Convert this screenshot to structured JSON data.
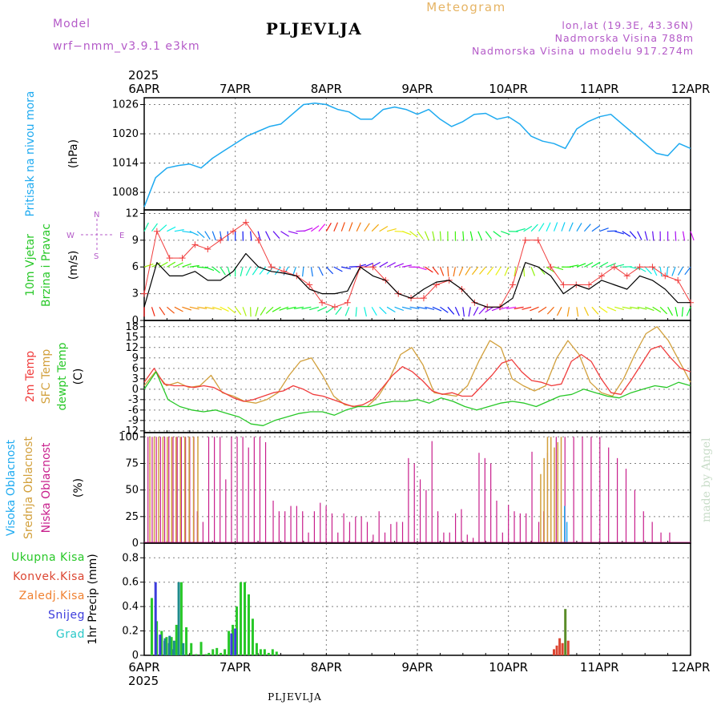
{
  "header": {
    "meteogram_label": "Meteogram",
    "model_label": "Model",
    "model_name": "wrf−nmm_v3.9.1  e3km",
    "station_name": "PLJEVLJA",
    "location": "lon,lat (19.3E, 43.36N)",
    "elevation": "Nadmorska Visina 788m",
    "model_elevation": "Nadmorska Visina u modelu 917.274m",
    "year": "2025",
    "footer_station": "PLJEVLJA",
    "credit": "made by Angel"
  },
  "colors": {
    "pressure": "#1eaaf0",
    "wind_speed": "#000000",
    "wind_gust": "#f03c3c",
    "temp_2m": "#f03c3c",
    "temp_sfc": "#d2a03c",
    "dewpoint": "#28c828",
    "cloud_high": "#1eaaf0",
    "cloud_mid": "#d2a03c",
    "cloud_low": "#c81e8c",
    "precip_total": "#28c828",
    "precip_conv": "#dc4632",
    "precip_frz": "#f08232",
    "precip_snow": "#3c3cdc",
    "precip_hail": "#28c8c8",
    "grid": "#808080"
  },
  "chart_data": [
    {
      "type": "line",
      "panel": "pressure",
      "ylabel": [
        "Pritisak na nivou mora",
        "(hPa)"
      ],
      "yticks": [
        1008,
        1014,
        1020,
        1026
      ],
      "ylim": [
        1004.4,
        1027.4
      ],
      "x_day_ticks": [
        "6APR",
        "7APR",
        "8APR",
        "9APR",
        "10APR",
        "11APR",
        "12APR"
      ],
      "x_hours": [
        0,
        3,
        6,
        9,
        12,
        15,
        18,
        21,
        24,
        27,
        30,
        33,
        36,
        39,
        42,
        45,
        48,
        51,
        54,
        57,
        60,
        63,
        66,
        69,
        72,
        75,
        78,
        81,
        84,
        87,
        90,
        93,
        96,
        99,
        102,
        105,
        108,
        111,
        114,
        117,
        120,
        123,
        126,
        129,
        132,
        135,
        138,
        141,
        144
      ],
      "series": [
        {
          "name": "MSLP",
          "values": [
            1005,
            1011,
            1013,
            1013.5,
            1013.8,
            1013,
            1015,
            1016.5,
            1018,
            1019.5,
            1020.5,
            1021.5,
            1022,
            1024,
            1026,
            1026.3,
            1026,
            1025,
            1024.5,
            1023,
            1023,
            1025,
            1025.5,
            1025,
            1024,
            1025,
            1023,
            1021.5,
            1022.5,
            1024,
            1024.2,
            1023,
            1023.5,
            1022,
            1019.5,
            1018.5,
            1018,
            1017,
            1021,
            1022.5,
            1023.5,
            1024,
            1022,
            1020,
            1018,
            1016,
            1015.5,
            1018,
            1017
          ]
        }
      ]
    },
    {
      "type": "line",
      "panel": "wind",
      "ylabel": [
        "10m Vjetar",
        "Brzina i Pravac",
        "(m/s)"
      ],
      "compass": {
        "n": "N",
        "s": "S",
        "e": "E",
        "w": "W"
      },
      "yticks": [
        0,
        3,
        6,
        9,
        12
      ],
      "ylim": [
        0,
        12.4
      ],
      "barb_levels": [
        1.5,
        6,
        10
      ],
      "series": [
        {
          "name": "Wind speed",
          "values": [
            1.5,
            6.5,
            5,
            5,
            5.5,
            4.5,
            4.5,
            5.5,
            7.5,
            6,
            5.5,
            5.3,
            5,
            3.5,
            3,
            3,
            3.3,
            6,
            5,
            4.5,
            3,
            2.5,
            3.5,
            4.3,
            4.5,
            3.5,
            2,
            1.5,
            1.5,
            2.5,
            6.5,
            6,
            5,
            3,
            4,
            3.5,
            4.5,
            4,
            3.5,
            5,
            4.5,
            3.5,
            2,
            2
          ]
        },
        {
          "name": "Wind gust",
          "values": [
            3,
            10,
            7,
            7,
            8.5,
            8,
            9,
            10,
            11,
            9,
            6,
            5.5,
            5,
            4,
            2,
            1.5,
            2,
            6,
            6,
            4.5,
            3,
            2.5,
            2.5,
            4,
            4.5,
            3.5,
            2,
            1.5,
            1.5,
            4,
            9,
            9,
            6,
            4,
            4,
            4,
            5,
            6,
            5,
            6,
            6,
            5,
            4.5,
            2
          ]
        }
      ],
      "x_hours_ref": "series sampled every 3.35 h across 144 h"
    },
    {
      "type": "line",
      "panel": "temperature",
      "ylabel": [
        "2m Temp",
        "SFC Temp",
        "dewpt Temp",
        "(C)"
      ],
      "yticks": [
        -12,
        -9,
        -6,
        -3,
        0,
        3,
        6,
        9,
        12,
        15,
        18
      ],
      "ylim": [
        -12.5,
        19.8
      ],
      "series": [
        {
          "name": "2m Temp",
          "values": [
            2,
            6,
            1.5,
            1,
            1,
            0.5,
            1,
            0.5,
            -1,
            -2.5,
            -3.5,
            -3,
            -2,
            -1,
            -0.5,
            1,
            0,
            -1.5,
            -2,
            -3,
            -4,
            -5,
            -4.5,
            -3,
            0.5,
            4,
            6.5,
            5,
            2.5,
            -0.5,
            -1.5,
            -1,
            -2,
            -2,
            1,
            4,
            7.5,
            8.5,
            5,
            2.5,
            2,
            1,
            1.5,
            8,
            10,
            8,
            3,
            -1,
            -1.5,
            2.5,
            7,
            11.5,
            12.5,
            9,
            6,
            5
          ]
        },
        {
          "name": "SFC Temp",
          "values": [
            1,
            5,
            1,
            2,
            0.5,
            1,
            4,
            -1,
            -2,
            -3.5,
            -4,
            -3,
            -1,
            4,
            8,
            9,
            4,
            -2,
            -4.5,
            -5,
            -5,
            -2,
            3,
            10,
            12,
            7,
            -1,
            -1.5,
            -2,
            1,
            8,
            14,
            12,
            3,
            1,
            -0.5,
            1,
            9,
            14,
            10,
            2,
            -1,
            -2,
            3,
            10,
            16,
            18,
            14,
            8,
            2
          ]
        },
        {
          "name": "dewpt Temp",
          "values": [
            0,
            5,
            -3,
            -5,
            -6,
            -6.5,
            -6,
            -7,
            -8,
            -10,
            -10.5,
            -9,
            -8,
            -7,
            -6.5,
            -6.5,
            -7.5,
            -6,
            -5,
            -5,
            -4,
            -3.5,
            -3.5,
            -3,
            -4,
            -2.5,
            -3.5,
            -5,
            -6,
            -5,
            -4,
            -3.5,
            -4,
            -5,
            -3.5,
            -2,
            -1.5,
            0,
            -1,
            -2,
            -2.5,
            -1,
            0,
            1,
            0.5,
            2,
            1
          ]
        }
      ]
    },
    {
      "type": "bar",
      "panel": "clouds",
      "ylabel": [
        "Visoka Oblacnost",
        "Srednja Oblacnost",
        "Niska Oblacnost",
        "(%)"
      ],
      "yticks": [
        0,
        25,
        50,
        75,
        100
      ],
      "ylim": [
        0,
        104
      ],
      "series": [
        {
          "name": "Niska Oblacnost",
          "values": [
            100,
            100,
            100,
            100,
            100,
            100,
            100,
            100,
            100,
            100,
            100,
            100,
            30,
            20,
            100,
            100,
            100,
            60,
            100,
            100,
            100,
            90,
            100,
            100,
            95,
            40,
            30,
            30,
            35,
            35,
            30,
            10,
            30,
            38,
            35,
            28,
            10,
            28,
            20,
            25,
            25,
            20,
            8,
            30,
            10,
            18,
            20,
            20,
            80,
            75,
            60,
            50,
            96,
            30,
            10,
            10,
            28,
            32,
            8,
            5,
            85,
            80,
            75,
            40,
            10,
            36,
            30,
            28,
            28,
            86,
            0,
            30,
            20,
            85,
            100,
            100,
            100,
            100,
            100,
            100,
            90,
            80,
            70,
            50,
            30,
            20,
            10,
            10
          ]
        },
        {
          "name": "Srednja Oblacnost",
          "values": [
            100,
            100,
            100,
            100,
            100,
            100,
            100,
            100,
            100,
            100,
            100,
            100,
            65,
            80,
            100,
            100,
            90,
            95,
            100
          ]
        },
        {
          "name": "Visoka Oblacnost",
          "values": [
            0,
            0,
            0,
            0,
            0,
            0,
            0,
            0,
            35,
            20,
            0
          ]
        }
      ]
    },
    {
      "type": "bar",
      "panel": "precipitation",
      "ylabel": [
        "1hr Precip (mm)"
      ],
      "legend": [
        "Ukupna Kisa",
        "Konvek.Kisa",
        "Zaledj.Kisa",
        "Snijeg",
        "Grad"
      ],
      "yticks": [
        0,
        0.2,
        0.4,
        0.6,
        0.8
      ],
      "ylim": [
        0,
        0.92
      ],
      "x_day_ticks": [
        "6APR",
        "7APR",
        "8APR",
        "9APR",
        "10APR",
        "11APR",
        "12APR"
      ],
      "series": [
        {
          "name": "Ukupna Kisa",
          "values": [
            0.47,
            0.28,
            0.2,
            0.15,
            0.15,
            0.25,
            0.6,
            0.23,
            0.1,
            0.01,
            0.11,
            0.01,
            0,
            0.02,
            0.05,
            0.06,
            0.02,
            0.05,
            0.2,
            0.25,
            0.4,
            0.6,
            0.6,
            0.5,
            0.3,
            0.1,
            0.05,
            0.05,
            0.02,
            0.05,
            0.03
          ]
        },
        {
          "name": "Konvek.Kisa",
          "values": [
            0.05,
            0.08,
            0.14,
            0.1,
            0.38,
            0.12
          ]
        },
        {
          "name": "Snijeg",
          "values": [
            0.6,
            0.17,
            0.12,
            0.1,
            0.05,
            0.18,
            0.22
          ]
        },
        {
          "name": "Grad",
          "values": [
            0.14,
            0.16,
            0.12,
            0.6,
            0.1
          ]
        }
      ]
    }
  ]
}
